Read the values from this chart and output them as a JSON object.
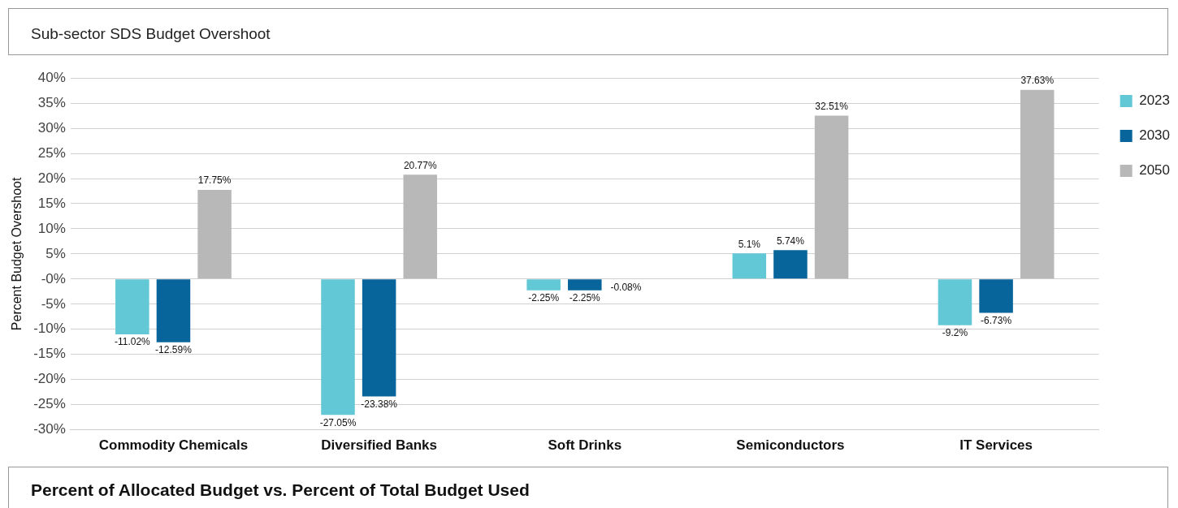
{
  "chart_data": {
    "type": "bar",
    "title": "Sub-sector SDS Budget Overshoot",
    "ylabel": "Percent Budget Overshoot",
    "categories": [
      "Commodity Chemicals",
      "Diversified Banks",
      "Soft Drinks",
      "Semiconductors",
      "IT Services"
    ],
    "series": [
      {
        "name": "2023",
        "color": "#62c8d6",
        "values": [
          -11.02,
          -27.05,
          -2.25,
          5.1,
          -9.2
        ],
        "value_labels": [
          "-11.02%",
          "-27.05%",
          "-2.25%",
          "5.1%",
          "-9.2%"
        ]
      },
      {
        "name": "2030",
        "color": "#08659b",
        "values": [
          -12.59,
          -23.38,
          -2.25,
          5.74,
          -6.73
        ],
        "value_labels": [
          "-12.59%",
          "-23.38%",
          "-2.25%",
          "5.74%",
          "-6.73%"
        ]
      },
      {
        "name": "2050",
        "color": "#b8b8b8",
        "values": [
          17.75,
          20.77,
          -0.08,
          32.51,
          37.63
        ],
        "value_labels": [
          "17.75%",
          "20.77%",
          "-0.08%",
          "32.51%",
          "37.63%"
        ]
      }
    ],
    "ylim": [
      -30,
      40
    ],
    "yticks": [
      {
        "value": -30,
        "label": "-30%"
      },
      {
        "value": -25,
        "label": "-25%"
      },
      {
        "value": -20,
        "label": "-20%"
      },
      {
        "value": -15,
        "label": "-15%"
      },
      {
        "value": -10,
        "label": "-10%"
      },
      {
        "value": -5,
        "label": "-5%"
      },
      {
        "value": 0,
        "label": "-0%"
      },
      {
        "value": 5,
        "label": "5%"
      },
      {
        "value": 10,
        "label": "10%"
      },
      {
        "value": 15,
        "label": "15%"
      },
      {
        "value": 20,
        "label": "20%"
      },
      {
        "value": 25,
        "label": "25%"
      },
      {
        "value": 30,
        "label": "30%"
      },
      {
        "value": 35,
        "label": "35%"
      },
      {
        "value": 40,
        "label": "40%"
      }
    ],
    "grid": "y",
    "legend": "right",
    "annotations": [
      "Percent of Allocated Budget vs. Percent of Total Budget Used"
    ]
  }
}
